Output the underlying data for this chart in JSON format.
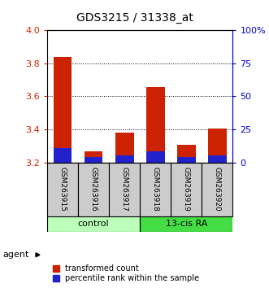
{
  "title": "GDS3215 / 31338_at",
  "samples": [
    "GSM263915",
    "GSM263916",
    "GSM263917",
    "GSM263918",
    "GSM263919",
    "GSM263920"
  ],
  "groups": [
    "control",
    "control",
    "control",
    "13-cis RA",
    "13-cis RA",
    "13-cis RA"
  ],
  "base_value": 3.2,
  "red_tops": [
    3.84,
    3.27,
    3.38,
    3.655,
    3.305,
    3.405
  ],
  "blue_tops": [
    3.285,
    3.235,
    3.245,
    3.27,
    3.235,
    3.245
  ],
  "ylim": [
    3.2,
    4.0
  ],
  "yticks": [
    3.2,
    3.4,
    3.6,
    3.8,
    4.0
  ],
  "right_yticks": [
    0,
    25,
    50,
    75,
    100
  ],
  "bar_width": 0.6,
  "red_color": "#cc2200",
  "blue_color": "#2222cc",
  "control_color": "#bbffbb",
  "ra_color": "#44dd44",
  "sample_bg_color": "#cccccc",
  "agent_label": "agent",
  "legend_items": [
    "transformed count",
    "percentile rank within the sample"
  ],
  "fig_width": 3.31,
  "fig_height": 3.54,
  "dpi": 100
}
